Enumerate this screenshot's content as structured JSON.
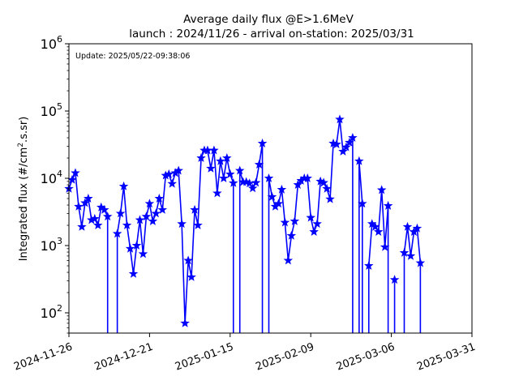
{
  "chart_data": {
    "type": "line",
    "title": "Average daily flux @E>1.6MeV",
    "subtitle": "launch : 2024/11/26 - arrival on-station: 2025/03/31",
    "annotation": "Update: 2025/05/22-09:38:06",
    "ylabel": "Integrated flux (#/cm",
    "ylabel_sup": "2",
    "ylabel_tail": ".s.sr)",
    "yscale": "log",
    "ylim": [
      50,
      1000000
    ],
    "xlim": [
      "2024-11-26",
      "2025-03-31"
    ],
    "y_ticks": [
      {
        "value": 100,
        "base": "10",
        "exp": "2"
      },
      {
        "value": 1000,
        "base": "10",
        "exp": "3"
      },
      {
        "value": 10000,
        "base": "10",
        "exp": "4"
      },
      {
        "value": 100000,
        "base": "10",
        "exp": "5"
      },
      {
        "value": 1000000,
        "base": "10",
        "exp": "6"
      }
    ],
    "x_ticks": [
      "2024-11-26",
      "2024-12-21",
      "2025-01-15",
      "2025-02-09",
      "2025-03-06",
      "2025-03-31"
    ],
    "series_color": "#0000ff",
    "marker": "star",
    "series": [
      {
        "x": [
          "2024-11-26",
          "2024-11-27",
          "2024-11-28",
          "2024-11-29",
          "2024-11-30",
          "2024-12-01",
          "2024-12-02",
          "2024-12-03",
          "2024-12-04",
          "2024-12-05",
          "2024-12-06",
          "2024-12-07",
          "2024-12-08",
          "2024-12-09",
          "2024-12-10",
          "2024-12-11",
          "2024-12-12",
          "2024-12-13",
          "2024-12-14",
          "2024-12-15",
          "2024-12-16",
          "2024-12-17",
          "2024-12-18",
          "2024-12-19",
          "2024-12-20",
          "2024-12-21",
          "2024-12-22",
          "2024-12-23",
          "2024-12-24",
          "2024-12-25",
          "2024-12-26",
          "2024-12-27",
          "2024-12-28",
          "2024-12-29",
          "2024-12-30",
          "2024-12-31",
          "2025-01-01",
          "2025-01-02",
          "2025-01-03",
          "2025-01-04",
          "2025-01-05",
          "2025-01-06",
          "2025-01-07",
          "2025-01-08",
          "2025-01-09",
          "2025-01-10",
          "2025-01-11",
          "2025-01-12",
          "2025-01-13",
          "2025-01-14",
          "2025-01-15",
          "2025-01-16",
          "2025-01-17",
          "2025-01-18",
          "2025-01-19",
          "2025-01-20",
          "2025-01-21",
          "2025-01-22",
          "2025-01-23",
          "2025-01-24",
          "2025-01-25",
          "2025-01-26",
          "2025-01-27",
          "2025-01-28",
          "2025-01-29",
          "2025-01-30",
          "2025-01-31",
          "2025-02-01",
          "2025-02-02",
          "2025-02-03",
          "2025-02-04",
          "2025-02-05",
          "2025-02-06",
          "2025-02-07",
          "2025-02-08",
          "2025-02-09",
          "2025-02-10",
          "2025-02-11",
          "2025-02-12",
          "2025-02-13",
          "2025-02-14",
          "2025-02-15",
          "2025-02-16",
          "2025-02-17",
          "2025-02-18",
          "2025-02-19",
          "2025-02-20",
          "2025-02-21",
          "2025-02-22",
          "2025-02-23",
          "2025-02-24",
          "2025-02-25",
          "2025-02-26",
          "2025-02-27",
          "2025-02-28",
          "2025-03-01",
          "2025-03-02",
          "2025-03-03",
          "2025-03-04",
          "2025-03-05",
          "2025-03-06",
          "2025-03-07",
          "2025-03-08",
          "2025-03-09",
          "2025-03-10",
          "2025-03-11",
          "2025-03-12",
          "2025-03-13",
          "2025-03-14",
          "2025-03-15",
          "2025-03-16",
          "2025-03-17",
          "2025-03-18",
          "2025-03-19",
          "2025-03-20",
          "2025-03-21",
          "2025-03-22",
          "2025-03-23",
          "2025-03-24",
          "2025-03-25",
          "2025-03-26",
          "2025-03-27",
          "2025-03-28",
          "2025-03-29",
          "2025-03-30",
          "2025-03-31"
        ],
        "y": [
          7000,
          9500,
          12000,
          3800,
          1900,
          4300,
          5000,
          2400,
          2500,
          2000,
          3700,
          3400,
          2700,
          null,
          null,
          1500,
          3000,
          7600,
          2000,
          900,
          380,
          1000,
          2400,
          750,
          2700,
          4200,
          2300,
          3000,
          5000,
          3400,
          11000,
          11500,
          8300,
          12000,
          13000,
          2100,
          70,
          600,
          340,
          3400,
          2000,
          20000,
          26000,
          26000,
          14000,
          26000,
          6000,
          18000,
          10000,
          20000,
          11500,
          8500,
          null,
          13000,
          8800,
          8800,
          8400,
          7100,
          8600,
          16000,
          33000,
          null,
          10000,
          5300,
          3800,
          4200,
          6800,
          2200,
          600,
          1400,
          2300,
          8000,
          9200,
          10000,
          10000,
          2600,
          1600,
          2100,
          9000,
          8600,
          7000,
          4900,
          33000,
          32000,
          75000,
          25000,
          29000,
          34000,
          40000,
          null,
          18000,
          4200,
          null,
          500,
          2100,
          1900,
          1600,
          6700,
          950,
          3900,
          null,
          310,
          null,
          null,
          780,
          1900,
          700,
          1600,
          1800,
          550,
          null,
          null,
          null,
          null,
          null,
          null,
          null,
          null,
          null,
          null,
          null,
          null,
          null,
          null,
          null,
          null
        ]
      }
    ]
  }
}
